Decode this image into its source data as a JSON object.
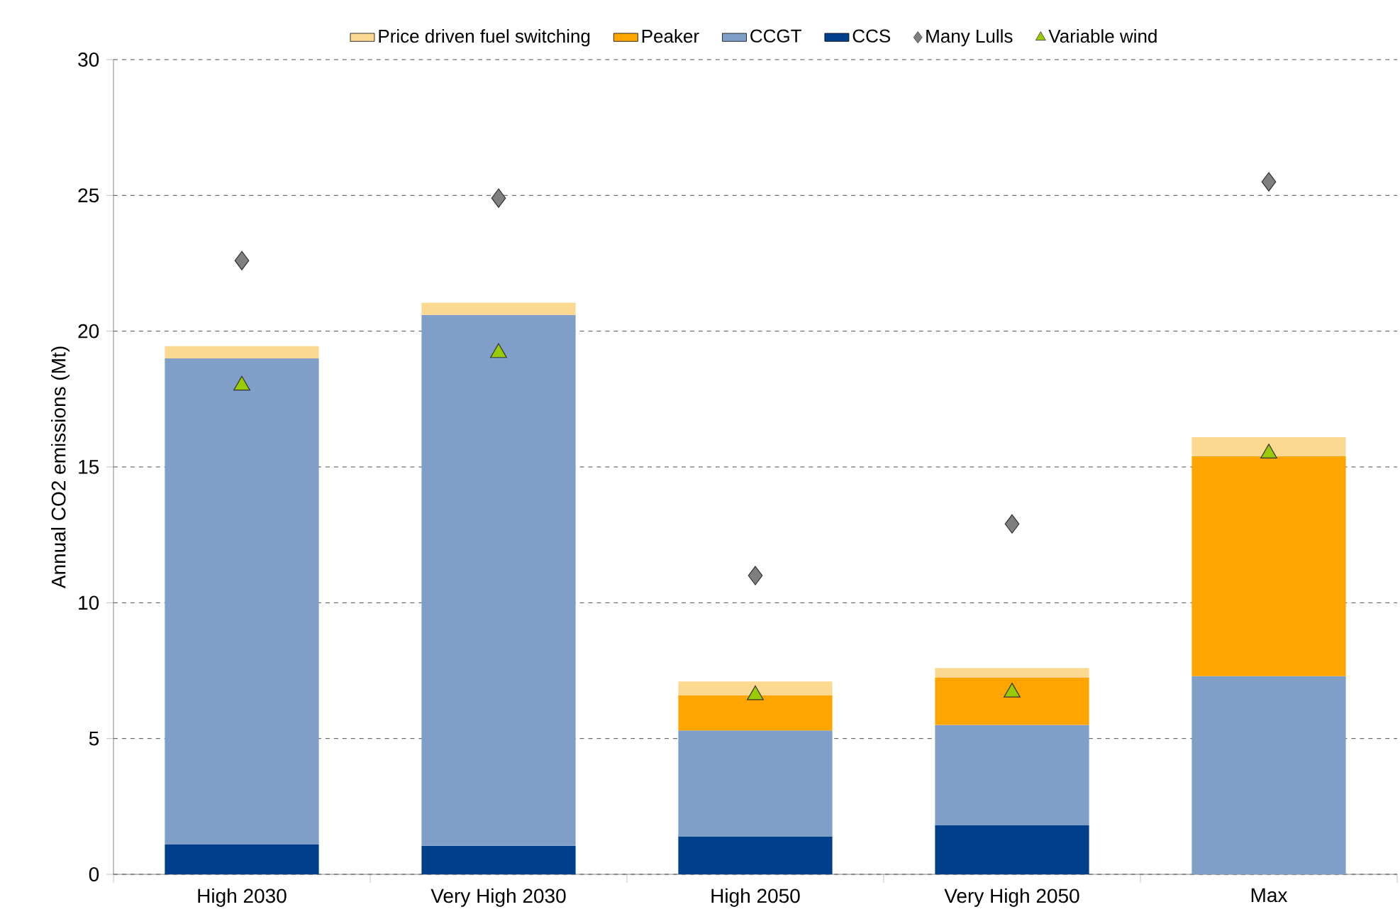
{
  "chart_data": {
    "type": "bar",
    "stacked": true,
    "ylabel": "Annual CO2 emissions (Mt)",
    "categories": [
      "High 2030",
      "Very High 2030",
      "High 2050",
      "Very High 2050",
      "Max"
    ],
    "series": [
      {
        "name": "CCS",
        "color": "#003f8a",
        "values": [
          1.1,
          1.05,
          1.4,
          1.8,
          0
        ]
      },
      {
        "name": "CCGT",
        "color": "#7f9fc8",
        "values": [
          17.9,
          19.55,
          3.9,
          3.7,
          7.3
        ]
      },
      {
        "name": "Peaker",
        "color": "#ffa500",
        "values": [
          0,
          0,
          1.3,
          1.75,
          8.1
        ]
      },
      {
        "name": "Price driven fuel switching",
        "color": "#fcd990",
        "values": [
          0.45,
          0.45,
          0.5,
          0.35,
          0.7
        ]
      },
      {
        "name": "Many Lulls",
        "type": "scatter",
        "marker": "diamond",
        "color": "#7f7f7f",
        "values": [
          22.6,
          24.9,
          11.0,
          12.9,
          25.5
        ]
      },
      {
        "name": "Variable wind",
        "type": "scatter",
        "marker": "triangle",
        "color": "#99cc00",
        "values": [
          18.0,
          19.2,
          6.6,
          6.7,
          15.5
        ]
      }
    ],
    "ylim": [
      0,
      30
    ],
    "yticks": [
      0,
      5,
      10,
      15,
      20,
      25,
      30
    ],
    "grid": "y",
    "legend": "top"
  }
}
